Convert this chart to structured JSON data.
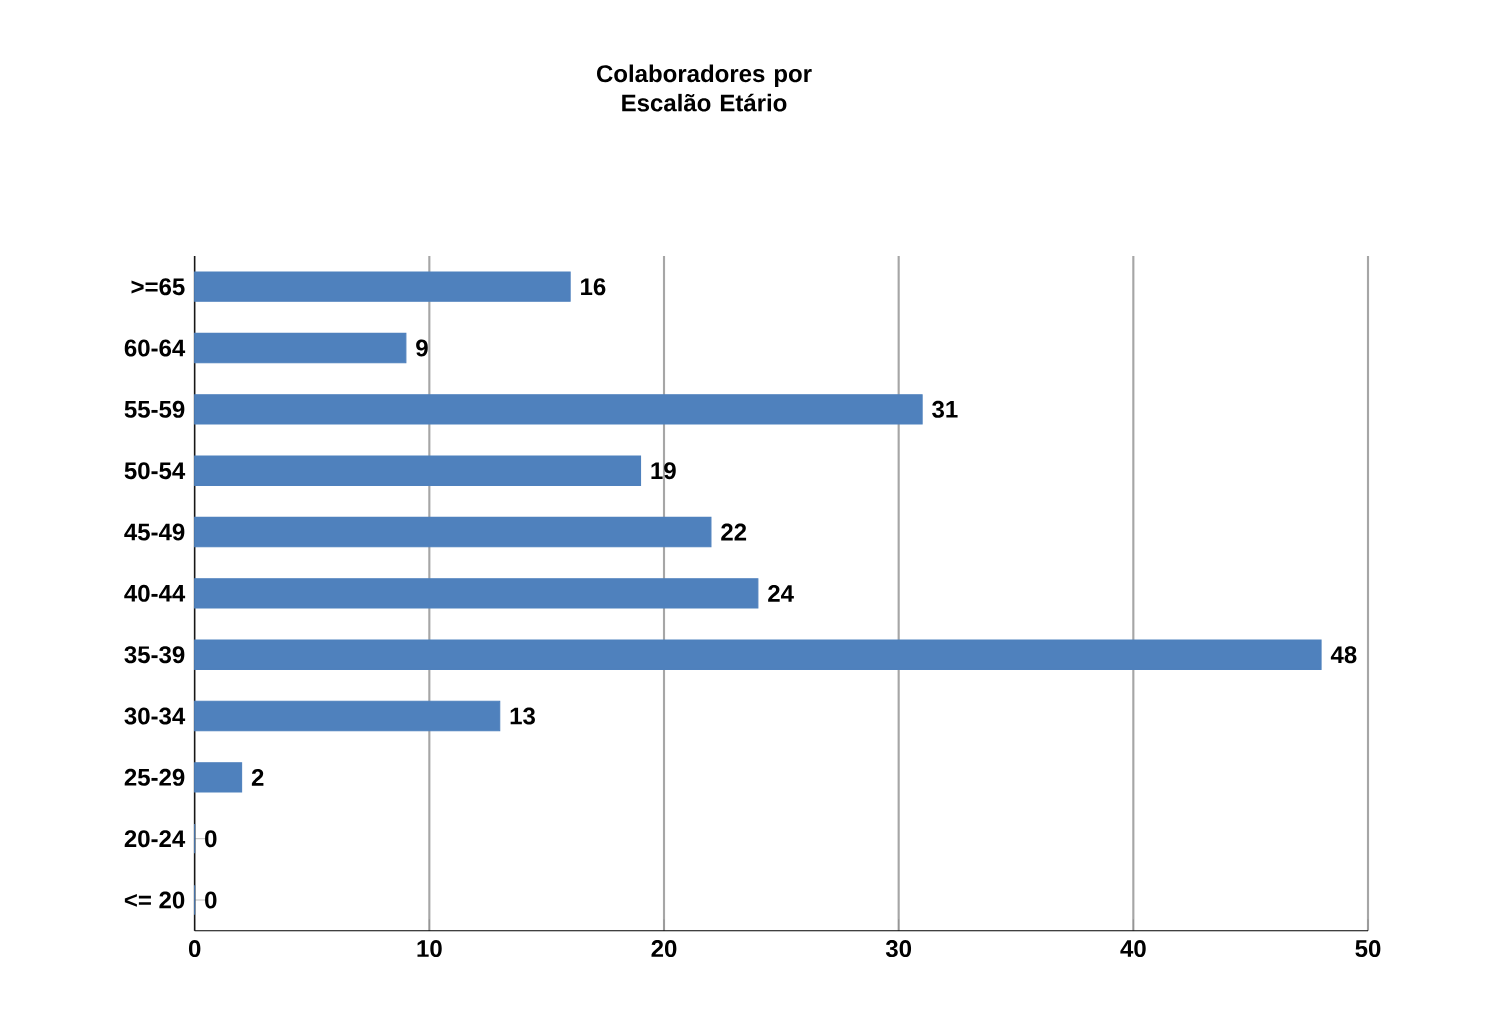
{
  "chart_data": {
    "type": "bar",
    "orientation": "horizontal",
    "title": "Colaboradores por Escalão Etário",
    "categories": [
      ">=65",
      "60-64",
      "55-59",
      "50-54",
      "45-49",
      "40-44",
      "35-39",
      "30-34",
      "25-29",
      "20-24",
      "<= 20"
    ],
    "values": [
      16,
      9,
      31,
      19,
      22,
      24,
      48,
      13,
      2,
      0,
      0
    ],
    "color": "#4f81bd",
    "xlim": [
      0,
      50
    ],
    "xticks": [
      0,
      10,
      20,
      30,
      40,
      50
    ],
    "grid": "x",
    "data_labels": true
  }
}
